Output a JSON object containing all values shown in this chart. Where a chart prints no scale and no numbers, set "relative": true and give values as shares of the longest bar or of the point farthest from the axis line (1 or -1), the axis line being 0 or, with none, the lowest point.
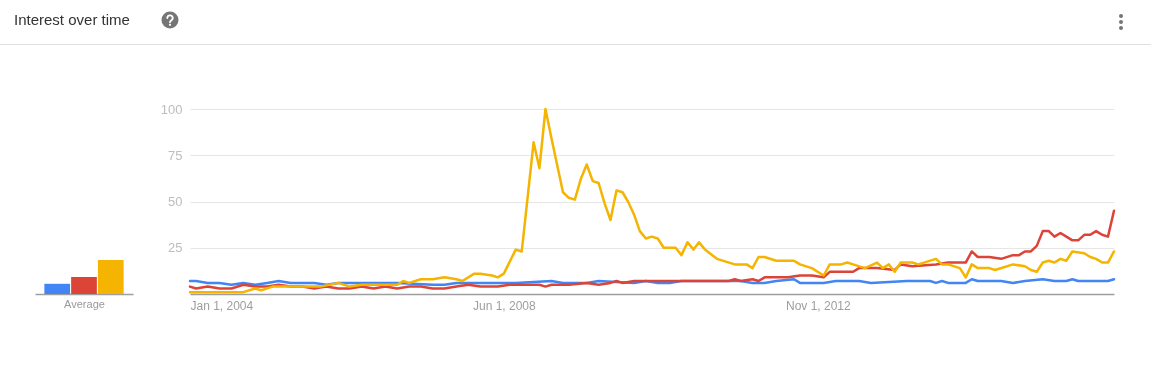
{
  "chart_data": [
    {
      "type": "bar",
      "relative": true,
      "xlabel": "Average",
      "categories": [
        null,
        null,
        null
      ],
      "values": [
        0.3,
        0.5,
        1
      ],
      "colors": [
        "#4285f4",
        "#db4437",
        "#f4b400"
      ]
    },
    {
      "type": "line",
      "title": "Interest over time",
      "grid": "y",
      "legend": false,
      "xlim": [
        "2004-01",
        "2017-01"
      ],
      "ylim": [
        0,
        100
      ],
      "yticks": [
        25,
        50,
        75,
        100
      ],
      "xticks": [
        {
          "value": "2004-01-01",
          "label": "Jan 1, 2004"
        },
        {
          "value": "2008-06-01",
          "label": "Jun 1, 2008"
        },
        {
          "value": "2012-11-01",
          "label": "Nov 1, 2012"
        }
      ],
      "series": [
        {
          "color": "#4285f4",
          "x": [
            "2004-01",
            "2004-02",
            "2004-04",
            "2004-06",
            "2004-08",
            "2004-10",
            "2004-12",
            "2005-02",
            "2005-04",
            "2005-06",
            "2005-10",
            "2005-12",
            "2006-02",
            "2006-12",
            "2007-06",
            "2007-08",
            "2007-10",
            "2008-08",
            "2009-02",
            "2009-04",
            "2009-08",
            "2009-10",
            "2010-04",
            "2010-06",
            "2010-08",
            "2010-10",
            "2010-12",
            "2011-10",
            "2011-12",
            "2012-02",
            "2012-04",
            "2012-07",
            "2012-08",
            "2012-10",
            "2012-12",
            "2013-02",
            "2013-06",
            "2013-08",
            "2014-02",
            "2014-06",
            "2014-07",
            "2014-08",
            "2014-09",
            "2014-12",
            "2015-01",
            "2015-02",
            "2015-06",
            "2015-08",
            "2015-10",
            "2016-01",
            "2016-03",
            "2016-05",
            "2016-06",
            "2016-07",
            "2016-12",
            "2017-01"
          ],
          "values": [
            7,
            7,
            6,
            6,
            5,
            6,
            5,
            6,
            7,
            6,
            6,
            5,
            6,
            6,
            5,
            5,
            6,
            6,
            7,
            6,
            6,
            7,
            6,
            7,
            6,
            6,
            7,
            7,
            6,
            6,
            7,
            8,
            6,
            6,
            6,
            7,
            7,
            6,
            7,
            7,
            6,
            7,
            6,
            6,
            8,
            7,
            7,
            6,
            7,
            8,
            7,
            7,
            8,
            7,
            7,
            8
          ]
        },
        {
          "color": "#db4437",
          "x": [
            "2004-01",
            "2004-02",
            "2004-04",
            "2004-06",
            "2004-08",
            "2004-10",
            "2004-12",
            "2005-02",
            "2005-04",
            "2005-06",
            "2005-08",
            "2005-10",
            "2005-12",
            "2006-02",
            "2006-04",
            "2006-06",
            "2006-08",
            "2006-10",
            "2006-12",
            "2007-02",
            "2007-04",
            "2007-06",
            "2007-08",
            "2007-10",
            "2007-12",
            "2008-02",
            "2008-05",
            "2008-07",
            "2008-10",
            "2008-12",
            "2009-01",
            "2009-02",
            "2009-05",
            "2009-08",
            "2009-10",
            "2009-12",
            "2010-01",
            "2010-02",
            "2010-04",
            "2010-06",
            "2010-08",
            "2010-12",
            "2011-04",
            "2011-08",
            "2011-09",
            "2011-10",
            "2011-12",
            "2012-01",
            "2012-02",
            "2012-06",
            "2012-08",
            "2012-10",
            "2012-12",
            "2013-01",
            "2013-05",
            "2013-06",
            "2013-09",
            "2013-12",
            "2014-01",
            "2014-03",
            "2014-07",
            "2014-09",
            "2014-12",
            "2015-01",
            "2015-02",
            "2015-04",
            "2015-06",
            "2015-08",
            "2015-09",
            "2015-10",
            "2015-11",
            "2015-12",
            "2016-01",
            "2016-02",
            "2016-03",
            "2016-04",
            "2016-05",
            "2016-06",
            "2016-07",
            "2016-08",
            "2016-09",
            "2016-10",
            "2016-11",
            "2016-12",
            "2017-01"
          ],
          "values": [
            4,
            3,
            4,
            3,
            3,
            5,
            4,
            4,
            5,
            4,
            4,
            3,
            4,
            3,
            3,
            4,
            3,
            4,
            3,
            4,
            4,
            3,
            3,
            4,
            5,
            4,
            4,
            5,
            5,
            5,
            4,
            5,
            5,
            6,
            5,
            6,
            7,
            6,
            7,
            7,
            7,
            7,
            7,
            7,
            8,
            7,
            8,
            7,
            9,
            9,
            10,
            10,
            9,
            12,
            12,
            14,
            14,
            13,
            16,
            15,
            16,
            17,
            17,
            23,
            20,
            20,
            19,
            21,
            21,
            23,
            23,
            26,
            34,
            34,
            31,
            33,
            31,
            29,
            29,
            32,
            32,
            34,
            32,
            31,
            45
          ]
        },
        {
          "color": "#f4b400",
          "x": [
            "2004-01",
            "2004-04",
            "2004-06",
            "2004-08",
            "2004-10",
            "2004-12",
            "2005-01",
            "2005-03",
            "2005-06",
            "2005-09",
            "2005-11",
            "2006-02",
            "2006-04",
            "2006-06",
            "2006-08",
            "2006-10",
            "2006-12",
            "2007-01",
            "2007-02",
            "2007-04",
            "2007-06",
            "2007-08",
            "2007-10",
            "2007-11",
            "2008-01",
            "2008-02",
            "2008-04",
            "2008-05",
            "2008-06",
            "2008-08",
            "2008-09",
            "2008-11",
            "2008-12",
            "2009-01",
            "2009-02",
            "2009-04",
            "2009-05",
            "2009-06",
            "2009-07",
            "2009-08",
            "2009-09",
            "2009-10",
            "2009-11",
            "2009-12",
            "2010-01",
            "2010-02",
            "2010-03",
            "2010-04",
            "2010-05",
            "2010-06",
            "2010-07",
            "2010-08",
            "2010-09",
            "2010-11",
            "2010-12",
            "2011-01",
            "2011-02",
            "2011-03",
            "2011-04",
            "2011-06",
            "2011-09",
            "2011-11",
            "2011-12",
            "2012-01",
            "2012-02",
            "2012-04",
            "2012-06",
            "2012-07",
            "2012-08",
            "2012-10",
            "2012-12",
            "2013-01",
            "2013-03",
            "2013-04",
            "2013-05",
            "2013-07",
            "2013-09",
            "2013-10",
            "2013-11",
            "2013-12",
            "2014-01",
            "2014-03",
            "2014-04",
            "2014-07",
            "2014-08",
            "2014-09",
            "2014-11",
            "2014-12",
            "2015-01",
            "2015-02",
            "2015-04",
            "2015-05",
            "2015-08",
            "2015-10",
            "2015-11",
            "2015-12",
            "2016-01",
            "2016-02",
            "2016-03",
            "2016-04",
            "2016-05",
            "2016-06",
            "2016-08",
            "2016-09",
            "2016-10",
            "2016-11",
            "2016-12",
            "2017-01"
          ],
          "values": [
            1,
            1,
            1,
            1,
            1,
            3,
            2,
            4,
            4,
            4,
            4,
            6,
            4,
            5,
            5,
            5,
            5,
            7,
            6,
            8,
            8,
            9,
            8,
            7,
            11,
            11,
            10,
            9,
            11,
            24,
            23,
            82,
            68,
            100,
            84,
            55,
            52,
            51,
            62,
            70,
            61,
            60,
            49,
            40,
            56,
            55,
            50,
            43,
            34,
            30,
            31,
            30,
            25,
            25,
            21,
            28,
            24,
            28,
            24,
            19,
            16,
            16,
            14,
            20,
            20,
            18,
            18,
            18,
            16,
            14,
            10,
            16,
            16,
            17,
            16,
            14,
            17,
            14,
            16,
            12,
            17,
            17,
            16,
            19,
            16,
            16,
            14,
            9,
            16,
            14,
            14,
            13,
            16,
            15,
            13,
            12,
            17,
            18,
            17,
            19,
            18,
            23,
            22,
            20,
            19,
            17,
            17,
            23
          ]
        }
      ]
    }
  ]
}
